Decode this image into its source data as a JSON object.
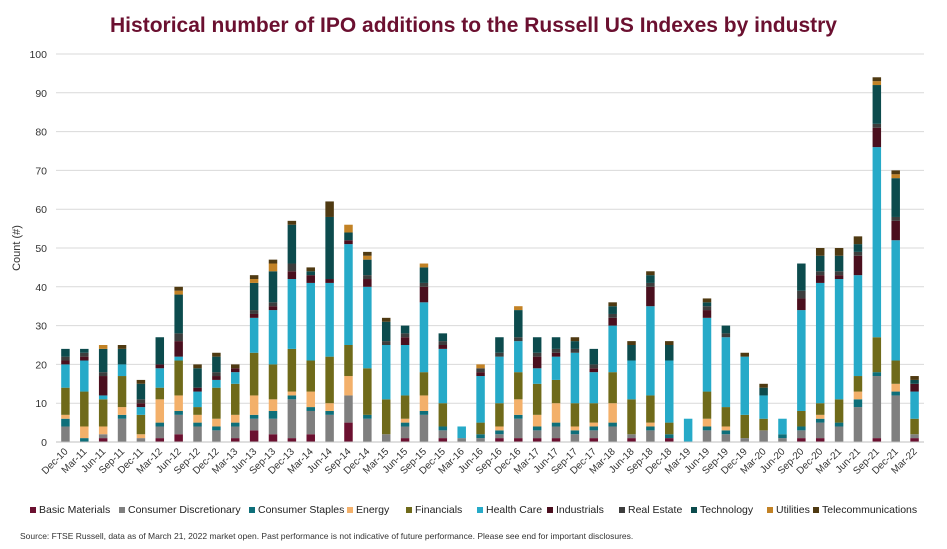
{
  "title": "Historical number of IPO additions to the Russell US Indexes by industry",
  "source": "Source: FTSE Russell, data as of March 21, 2022 market open. Past performance is not indicative of future performance. Please see end for important disclosures.",
  "chart_data": {
    "type": "bar",
    "stacked": true,
    "title": "Historical number of IPO additions to the Russell US Indexes by industry",
    "xlabel": "",
    "ylabel": "Count (#)",
    "ylim": [
      0,
      100
    ],
    "yticks": [
      0,
      10,
      20,
      30,
      40,
      50,
      60,
      70,
      80,
      90,
      100
    ],
    "grid": true,
    "legend_position": "bottom",
    "categories": [
      "Dec-10",
      "Mar-11",
      "Jun-11",
      "Sep-11",
      "Dec-11",
      "Mar-12",
      "Jun-12",
      "Sep-12",
      "Dec-12",
      "Mar-13",
      "Jun-13",
      "Sep-13",
      "Dec-13",
      "Mar-14",
      "Jun-14",
      "Sep-14",
      "Dec-14",
      "Mar-15",
      "Jun-15",
      "Sep-15",
      "Dec-15",
      "Mar-16",
      "Jun-16",
      "Sep-16",
      "Dec-16",
      "Mar-17",
      "Jun-17",
      "Sep-17",
      "Dec-17",
      "Mar-18",
      "Jun-18",
      "Sep-18",
      "Dec-18",
      "Mar-19",
      "Jun-19",
      "Sep-19",
      "Dec-19",
      "Mar-20",
      "Jun-20",
      "Sep-20",
      "Dec-20",
      "Mar-21",
      "Jun-21",
      "Sep-21",
      "Dec-21",
      "Mar-22"
    ],
    "series": [
      {
        "name": "Basic Materials",
        "color": "#6b1030",
        "values": [
          0,
          0,
          1,
          0,
          0,
          1,
          2,
          0,
          0,
          1,
          3,
          2,
          1,
          2,
          0,
          5,
          0,
          0,
          1,
          0,
          1,
          0,
          0,
          1,
          1,
          1,
          1,
          0,
          1,
          0,
          1,
          0,
          1,
          0,
          0,
          0,
          0,
          0,
          0,
          1,
          1,
          0,
          0,
          1,
          0,
          1
        ]
      },
      {
        "name": "Consumer Discretionary",
        "color": "#7f7f7f",
        "values": [
          4,
          0,
          1,
          6,
          1,
          3,
          5,
          4,
          3,
          3,
          3,
          4,
          10,
          6,
          7,
          7,
          6,
          2,
          3,
          7,
          2,
          1,
          1,
          1,
          5,
          2,
          3,
          2,
          2,
          4,
          1,
          3,
          0,
          0,
          3,
          2,
          1,
          3,
          1,
          2,
          4,
          4,
          9,
          16,
          12,
          1
        ]
      },
      {
        "name": "Consumer Staples",
        "color": "#0e6f7a",
        "values": [
          2,
          1,
          0,
          1,
          0,
          1,
          1,
          1,
          1,
          1,
          1,
          2,
          1,
          1,
          1,
          0,
          1,
          0,
          1,
          1,
          1,
          0,
          1,
          1,
          1,
          1,
          1,
          1,
          1,
          1,
          0,
          1,
          1,
          0,
          1,
          1,
          0,
          0,
          1,
          1,
          1,
          1,
          2,
          1,
          1,
          0
        ]
      },
      {
        "name": "Energy",
        "color": "#f3b06a",
        "values": [
          1,
          3,
          2,
          2,
          1,
          6,
          4,
          2,
          2,
          2,
          5,
          3,
          1,
          4,
          2,
          5,
          0,
          0,
          1,
          4,
          0,
          0,
          0,
          1,
          4,
          3,
          5,
          1,
          1,
          5,
          0,
          1,
          0,
          0,
          2,
          1,
          0,
          0,
          0,
          0,
          1,
          0,
          2,
          0,
          2,
          0
        ]
      },
      {
        "name": "Financials",
        "color": "#6f6a1a",
        "values": [
          7,
          9,
          7,
          8,
          5,
          3,
          9,
          2,
          8,
          8,
          11,
          9,
          11,
          8,
          12,
          8,
          12,
          9,
          6,
          6,
          6,
          0,
          3,
          6,
          7,
          8,
          6,
          6,
          5,
          8,
          9,
          7,
          3,
          0,
          7,
          5,
          6,
          3,
          0,
          4,
          3,
          6,
          4,
          9,
          6,
          4
        ]
      },
      {
        "name": "Health Care",
        "color": "#26aac8",
        "values": [
          6,
          8,
          1,
          3,
          2,
          5,
          1,
          4,
          2,
          3,
          9,
          14,
          18,
          20,
          19,
          26,
          21,
          14,
          13,
          18,
          14,
          3,
          12,
          12,
          8,
          4,
          6,
          13,
          8,
          12,
          10,
          23,
          16,
          6,
          19,
          18,
          15,
          6,
          4,
          26,
          31,
          31,
          26,
          49,
          31,
          7
        ]
      },
      {
        "name": "Industrials",
        "color": "#4a0f1e",
        "values": [
          1,
          1,
          5,
          0,
          1,
          1,
          4,
          1,
          1,
          1,
          1,
          1,
          2,
          2,
          1,
          1,
          2,
          0,
          2,
          4,
          1,
          0,
          1,
          0,
          0,
          3,
          1,
          0,
          1,
          2,
          0,
          5,
          0,
          0,
          2,
          0,
          0,
          0,
          0,
          3,
          2,
          1,
          5,
          5,
          5,
          2
        ]
      },
      {
        "name": "Real Estate",
        "color": "#3d3d3d",
        "values": [
          1,
          1,
          1,
          0,
          1,
          0,
          2,
          0,
          1,
          0,
          1,
          1,
          2,
          0,
          0,
          0,
          1,
          1,
          1,
          1,
          1,
          0,
          1,
          1,
          1,
          1,
          1,
          1,
          1,
          1,
          0,
          1,
          0,
          0,
          1,
          1,
          0,
          0,
          0,
          2,
          1,
          1,
          1,
          1,
          1,
          0
        ]
      },
      {
        "name": "Technology",
        "color": "#0c4b4d",
        "values": [
          2,
          1,
          6,
          4,
          4,
          7,
          10,
          5,
          4,
          0,
          7,
          8,
          10,
          1,
          16,
          2,
          4,
          5,
          2,
          4,
          2,
          0,
          0,
          4,
          7,
          4,
          3,
          2,
          4,
          2,
          4,
          2,
          4,
          0,
          1,
          2,
          0,
          2,
          0,
          7,
          4,
          4,
          2,
          10,
          10,
          1
        ]
      },
      {
        "name": "Utilities",
        "color": "#c28225",
        "values": [
          0,
          0,
          1,
          0,
          0,
          0,
          1,
          0,
          0,
          0,
          1,
          2,
          0,
          0,
          0,
          2,
          1,
          0,
          0,
          1,
          0,
          0,
          1,
          0,
          1,
          0,
          0,
          0,
          0,
          0,
          0,
          0,
          0,
          0,
          0,
          0,
          0,
          0,
          0,
          0,
          0,
          0,
          0,
          1,
          1,
          0
        ]
      },
      {
        "name": "Telecommunications",
        "color": "#4f3a12",
        "values": [
          0,
          0,
          0,
          1,
          1,
          0,
          1,
          1,
          1,
          1,
          1,
          1,
          1,
          1,
          4,
          0,
          1,
          1,
          0,
          0,
          0,
          0,
          0,
          0,
          0,
          0,
          0,
          1,
          0,
          1,
          1,
          1,
          1,
          0,
          1,
          0,
          1,
          1,
          0,
          0,
          2,
          2,
          2,
          1,
          1,
          1
        ]
      }
    ]
  }
}
